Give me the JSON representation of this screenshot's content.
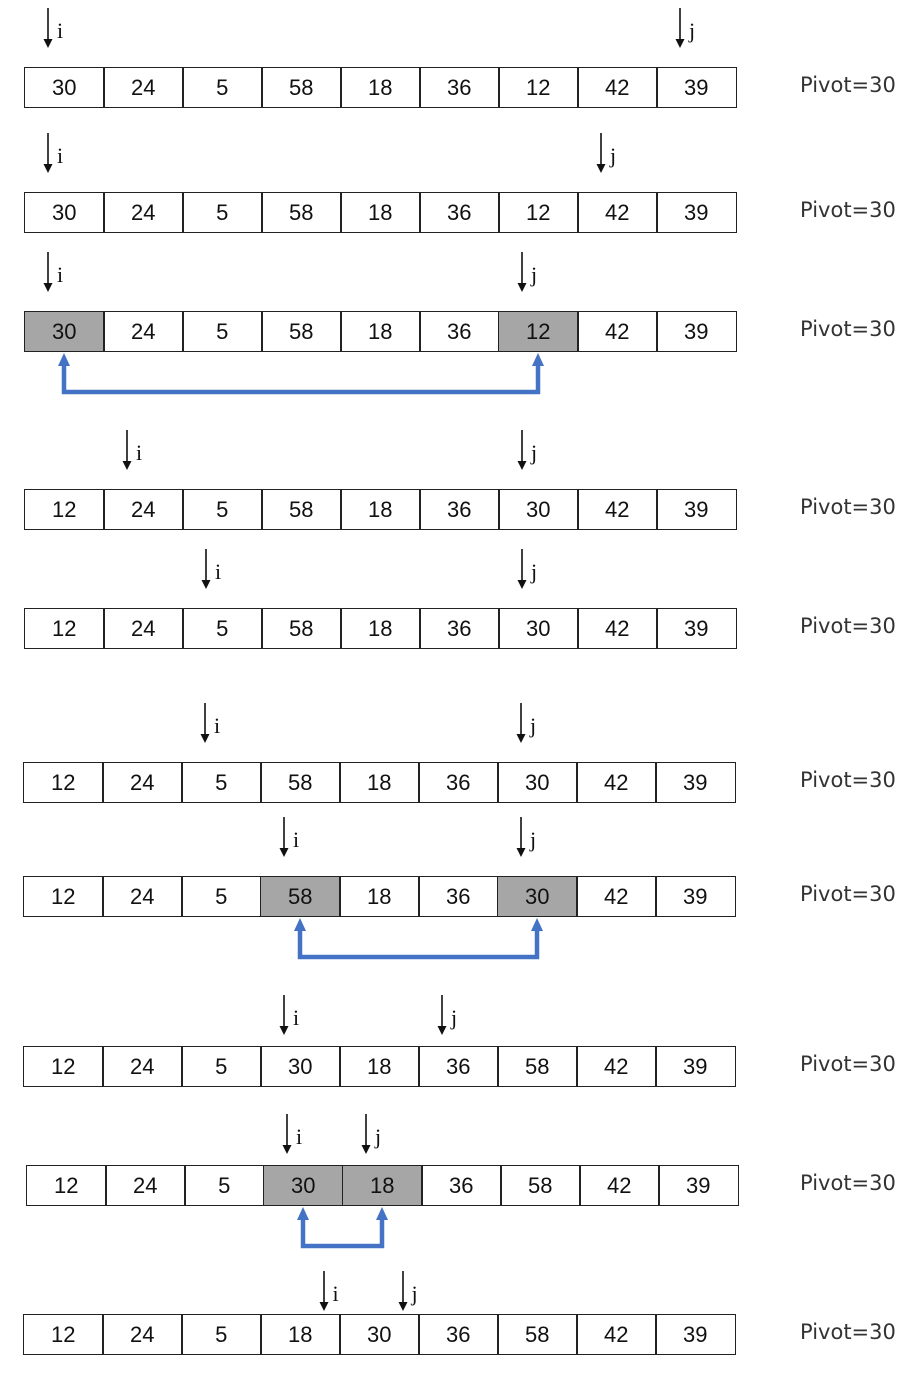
{
  "colors": {
    "cell_border": "#222222",
    "highlight": "#a6a6a6",
    "swap_arrow": "#4472c4",
    "text": "#111111"
  },
  "pointer_labels": {
    "i": "i",
    "j": "j"
  },
  "rows": [
    {
      "values": [
        "30",
        "24",
        "5",
        "58",
        "18",
        "36",
        "12",
        "42",
        "39"
      ],
      "pivot": "Pivot=30",
      "i": 0,
      "j": 8,
      "highlight": [],
      "swap": null
    },
    {
      "values": [
        "30",
        "24",
        "5",
        "58",
        "18",
        "36",
        "12",
        "42",
        "39"
      ],
      "pivot": "Pivot=30",
      "i": 0,
      "j": 7,
      "highlight": [],
      "swap": null
    },
    {
      "values": [
        "30",
        "24",
        "5",
        "58",
        "18",
        "36",
        "12",
        "42",
        "39"
      ],
      "pivot": "Pivot=30",
      "i": 0,
      "j": 6,
      "highlight": [
        0,
        6
      ],
      "swap": [
        0,
        6
      ]
    },
    {
      "values": [
        "12",
        "24",
        "5",
        "58",
        "18",
        "36",
        "30",
        "42",
        "39"
      ],
      "pivot": "Pivot=30",
      "i": 1,
      "j": 6,
      "highlight": [],
      "swap": null
    },
    {
      "values": [
        "12",
        "24",
        "5",
        "58",
        "18",
        "36",
        "30",
        "42",
        "39"
      ],
      "pivot": "Pivot=30",
      "i": 2,
      "j": 6,
      "highlight": [],
      "swap": null
    },
    {
      "values": [
        "12",
        "24",
        "5",
        "58",
        "18",
        "36",
        "30",
        "42",
        "39"
      ],
      "pivot": "Pivot=30",
      "i": 2,
      "j": 6,
      "highlight": [],
      "swap": null
    },
    {
      "values": [
        "12",
        "24",
        "5",
        "58",
        "18",
        "36",
        "30",
        "42",
        "39"
      ],
      "pivot": "Pivot=30",
      "i": 3,
      "j": 6,
      "highlight": [
        3,
        6
      ],
      "swap": [
        3,
        6
      ]
    },
    {
      "values": [
        "12",
        "24",
        "5",
        "30",
        "18",
        "36",
        "58",
        "42",
        "39"
      ],
      "pivot": "Pivot=30",
      "i": 3,
      "j": 5,
      "highlight": [],
      "swap": null
    },
    {
      "values": [
        "12",
        "24",
        "5",
        "30",
        "18",
        "36",
        "58",
        "42",
        "39"
      ],
      "pivot": "Pivot=30",
      "i": 3,
      "j": 4,
      "highlight": [
        3,
        4
      ],
      "swap": [
        3,
        4
      ]
    },
    {
      "values": [
        "12",
        "24",
        "5",
        "18",
        "30",
        "36",
        "58",
        "42",
        "39"
      ],
      "pivot": "Pivot=30",
      "i": "3.5",
      "j": "4.5",
      "highlight": [],
      "swap": null
    }
  ]
}
